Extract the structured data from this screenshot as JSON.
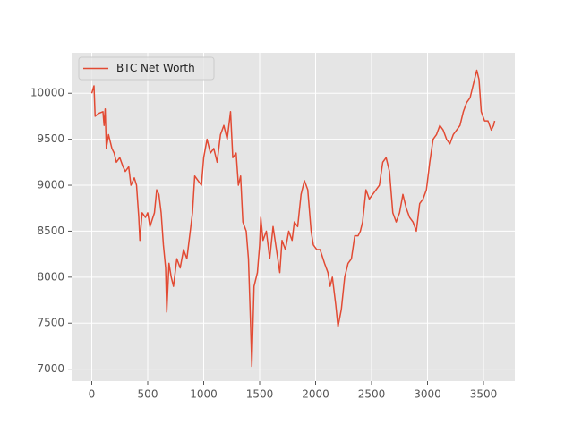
{
  "chart_data": {
    "type": "line",
    "x": [
      0,
      20,
      30,
      60,
      100,
      110,
      120,
      130,
      150,
      180,
      200,
      220,
      250,
      280,
      300,
      330,
      350,
      380,
      400,
      420,
      430,
      450,
      480,
      500,
      520,
      560,
      580,
      600,
      620,
      640,
      660,
      670,
      690,
      710,
      730,
      760,
      790,
      820,
      850,
      880,
      900,
      920,
      950,
      980,
      1000,
      1030,
      1060,
      1090,
      1120,
      1150,
      1180,
      1210,
      1240,
      1260,
      1290,
      1310,
      1330,
      1350,
      1380,
      1400,
      1420,
      1430,
      1450,
      1480,
      1500,
      1510,
      1530,
      1560,
      1590,
      1620,
      1650,
      1680,
      1700,
      1730,
      1760,
      1790,
      1810,
      1840,
      1870,
      1900,
      1930,
      1960,
      1980,
      2010,
      2040,
      2080,
      2110,
      2130,
      2150,
      2180,
      2200,
      2230,
      2260,
      2290,
      2320,
      2350,
      2380,
      2400,
      2420,
      2450,
      2480,
      2510,
      2540,
      2570,
      2600,
      2630,
      2660,
      2690,
      2720,
      2750,
      2780,
      2810,
      2840,
      2870,
      2900,
      2930,
      2960,
      2990,
      3020,
      3050,
      3080,
      3110,
      3140,
      3170,
      3200,
      3230,
      3260,
      3290,
      3320,
      3350,
      3380,
      3410,
      3440,
      3460,
      3480,
      3510,
      3540,
      3570,
      3590,
      3600
    ],
    "series": [
      {
        "name": "BTC Net Worth",
        "color": "#e24a33",
        "values": [
          10000,
          10080,
          9750,
          9780,
          9800,
          9650,
          9830,
          9400,
          9550,
          9400,
          9350,
          9250,
          9300,
          9200,
          9150,
          9200,
          9000,
          9080,
          9000,
          8650,
          8400,
          8700,
          8650,
          8700,
          8550,
          8700,
          8950,
          8900,
          8700,
          8350,
          8100,
          7620,
          8150,
          8000,
          7900,
          8200,
          8100,
          8300,
          8200,
          8500,
          8700,
          9100,
          9050,
          9000,
          9300,
          9500,
          9350,
          9400,
          9250,
          9550,
          9650,
          9500,
          9800,
          9300,
          9350,
          9000,
          9100,
          8600,
          8500,
          8200,
          7450,
          7030,
          7900,
          8050,
          8350,
          8650,
          8400,
          8500,
          8200,
          8550,
          8300,
          8050,
          8400,
          8300,
          8500,
          8400,
          8600,
          8550,
          8900,
          9050,
          8950,
          8500,
          8350,
          8300,
          8300,
          8150,
          8050,
          7900,
          8000,
          7700,
          7460,
          7650,
          8000,
          8150,
          8200,
          8450,
          8450,
          8500,
          8600,
          8950,
          8850,
          8900,
          8950,
          9000,
          9250,
          9300,
          9150,
          8700,
          8600,
          8700,
          8900,
          8750,
          8650,
          8600,
          8500,
          8800,
          8850,
          8950,
          9250,
          9500,
          9550,
          9650,
          9600,
          9500,
          9450,
          9550,
          9600,
          9650,
          9800,
          9900,
          9950,
          10100,
          10250,
          10150,
          9800,
          9700,
          9700,
          9600,
          9650,
          9700
        ]
      }
    ],
    "xlim": [
      -180,
      3780
    ],
    "ylim": [
      6870,
      10440
    ],
    "xticks": [
      0,
      500,
      1000,
      1500,
      2000,
      2500,
      3000,
      3500
    ],
    "yticks": [
      7000,
      7500,
      8000,
      8500,
      9000,
      9500,
      10000
    ],
    "grid": true,
    "legend": "upper-left"
  }
}
